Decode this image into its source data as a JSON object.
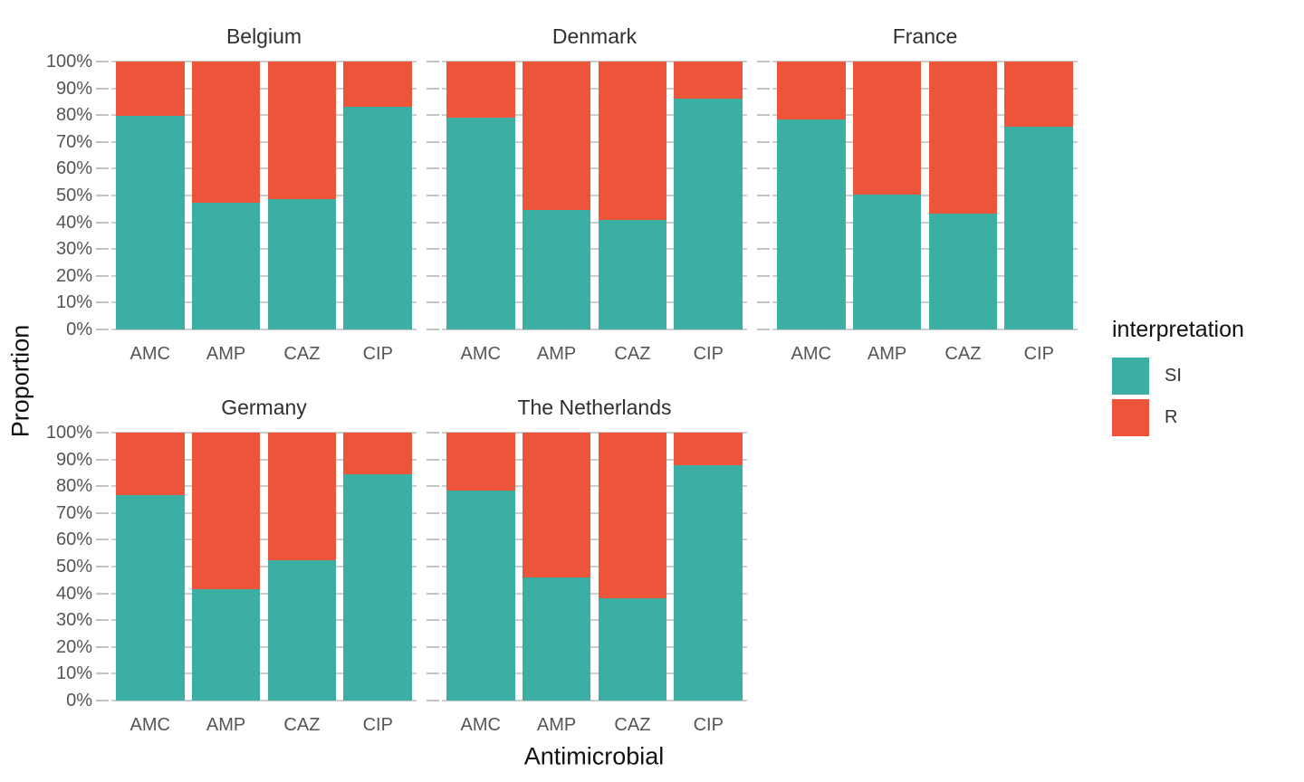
{
  "figure": {
    "ylabel": "Proportion",
    "xlabel": "Antimicrobial"
  },
  "legend": {
    "title": "interpretation",
    "entries": [
      {
        "label": "SI",
        "color": "#3CAEA3"
      },
      {
        "label": "R",
        "color": "#ED553B"
      }
    ]
  },
  "chart_data": {
    "type": "bar",
    "stacked": true,
    "units": "percent",
    "grid": "horizontal",
    "legend_position": "right",
    "title": "",
    "xlabel": "Antimicrobial",
    "ylabel": "Proportion",
    "ylim": [
      0,
      100
    ],
    "y_ticks": [
      "0%",
      "10%",
      "20%",
      "30%",
      "40%",
      "50%",
      "60%",
      "70%",
      "80%",
      "90%",
      "100%"
    ],
    "categories": [
      "AMC",
      "AMP",
      "CAZ",
      "CIP"
    ],
    "series_names": [
      "SI",
      "R"
    ],
    "series_colors": {
      "SI": "#3CAEA3",
      "R": "#ED553B"
    },
    "facets": [
      {
        "title": "Belgium",
        "SI": [
          79.8,
          47.3,
          48.8,
          83.2
        ],
        "R": [
          20.2,
          52.7,
          51.2,
          16.8
        ]
      },
      {
        "title": "Denmark",
        "SI": [
          79.1,
          44.7,
          41.0,
          86.1
        ],
        "R": [
          20.9,
          55.3,
          59.0,
          13.9
        ]
      },
      {
        "title": "France",
        "SI": [
          78.3,
          50.5,
          43.3,
          75.7
        ],
        "R": [
          21.7,
          49.5,
          56.7,
          24.3
        ]
      },
      {
        "title": "Germany",
        "SI": [
          76.6,
          41.6,
          52.4,
          84.3
        ],
        "R": [
          23.4,
          58.4,
          47.6,
          15.7
        ]
      },
      {
        "title": "The Netherlands",
        "SI": [
          78.5,
          45.9,
          38.3,
          87.7
        ],
        "R": [
          21.5,
          54.1,
          61.7,
          12.3
        ]
      }
    ]
  }
}
